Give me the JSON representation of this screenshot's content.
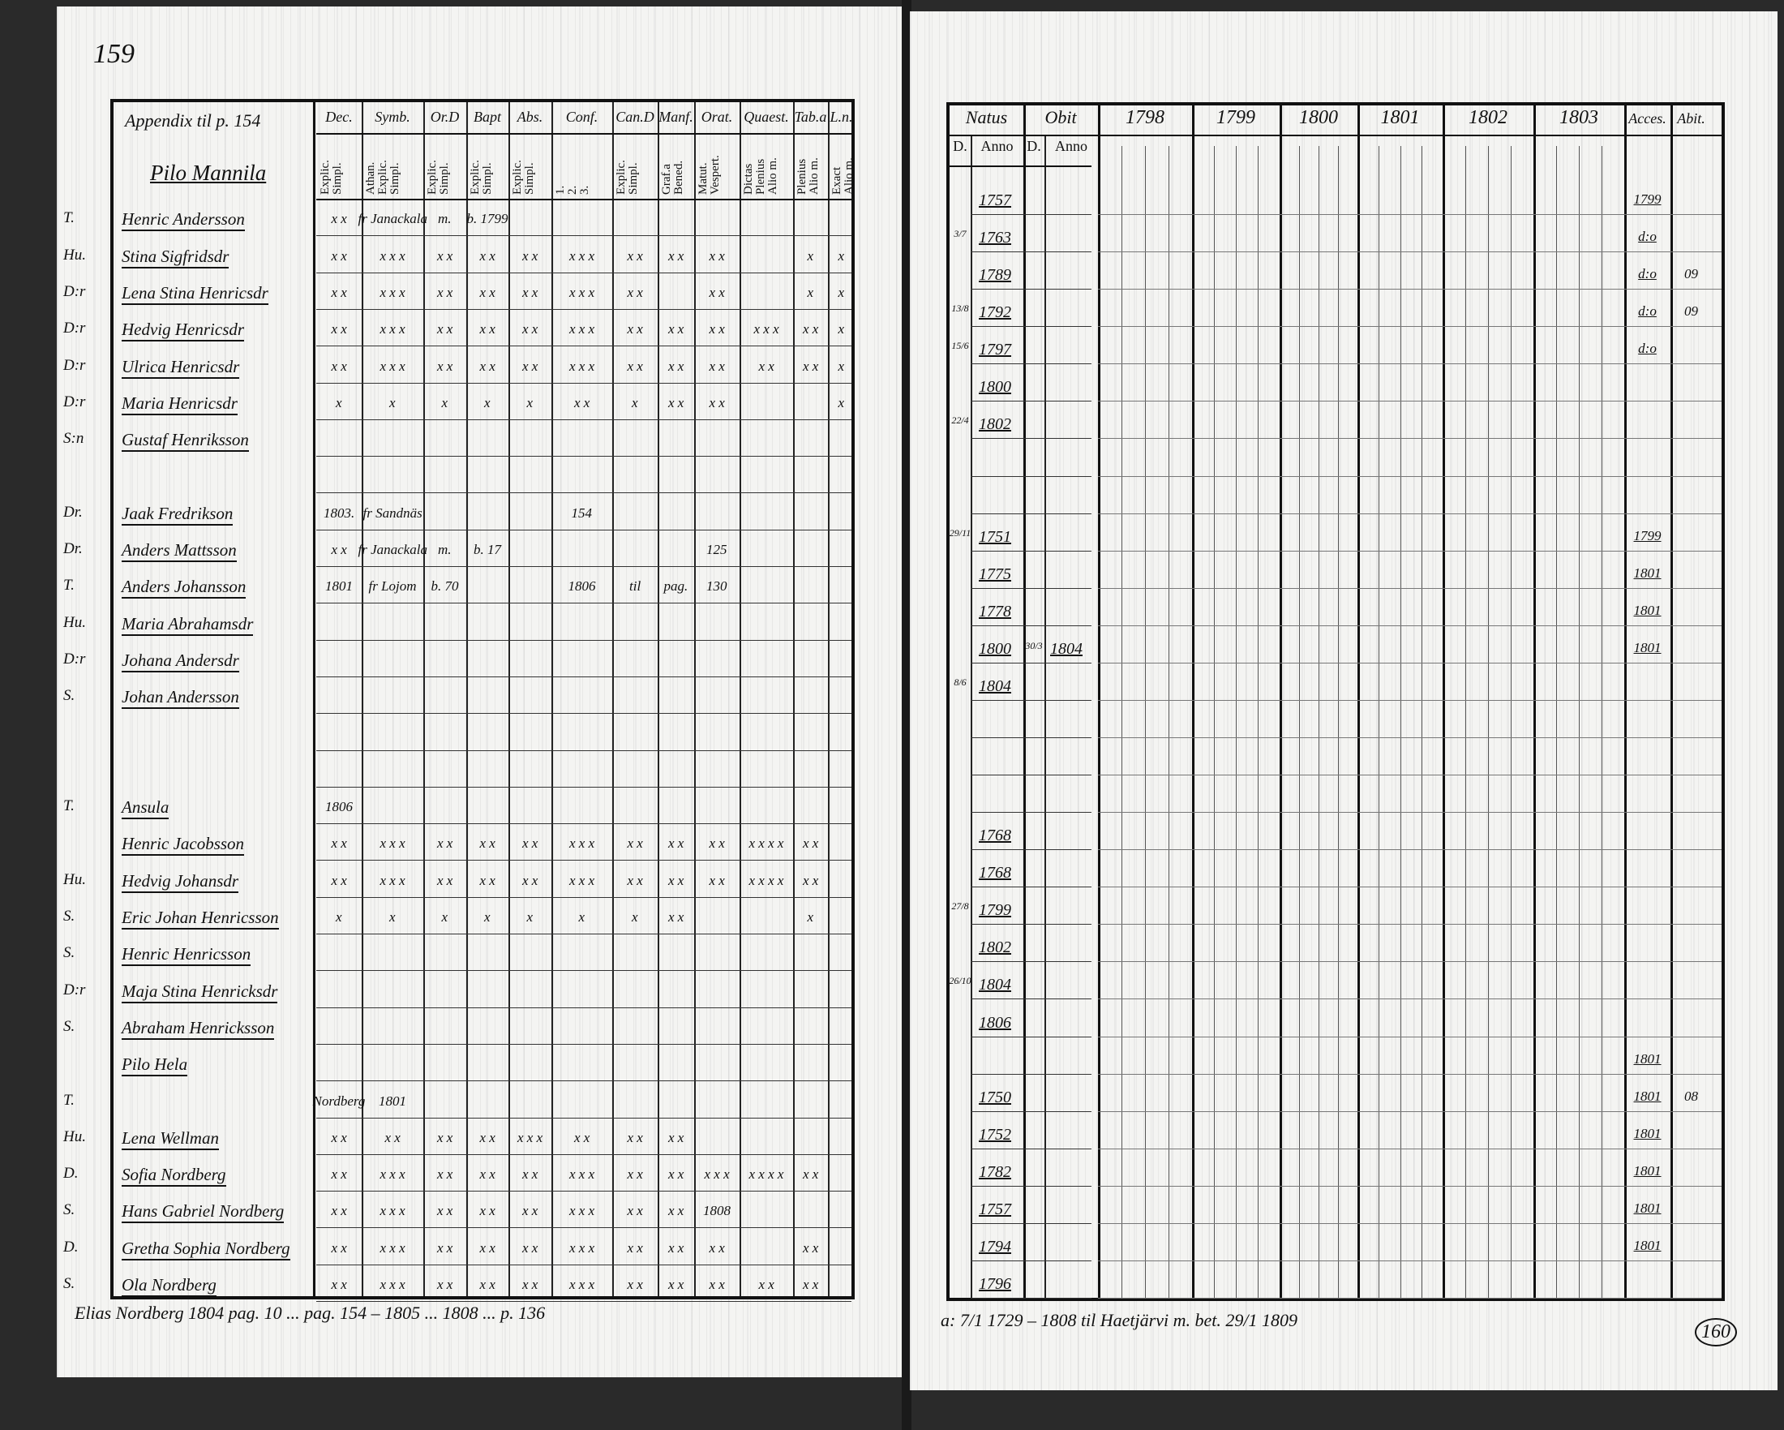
{
  "left_page": {
    "page_number": "159",
    "appendix_label": "Appendix til p. 154",
    "section_title": "Pilo Mannila",
    "columns": [
      {
        "label": "Dec.",
        "sub": "Explic.\nSimpl."
      },
      {
        "label": "Symb.",
        "sub": "Athan.\nExplic.\nSimpl."
      },
      {
        "label": "Or.D",
        "sub": "Explic.\nSimpl."
      },
      {
        "label": "Bapt",
        "sub": "Explic.\nSimpl."
      },
      {
        "label": "Abs.",
        "sub": "Explic.\nSimpl."
      },
      {
        "label": "Conf.",
        "sub": "1.\n2.\n3."
      },
      {
        "label": "Can.D",
        "sub": "Explic.\nSimpl."
      },
      {
        "label": "Manf.",
        "sub": "Graf.a\nBened."
      },
      {
        "label": "Orat.",
        "sub": "Matut.\nVespert."
      },
      {
        "label": "Quaest.",
        "sub": "Dictas\nPlenius\nAlio m."
      },
      {
        "label": "Tab.a",
        "sub": "Plenius\nAlio m."
      },
      {
        "label": "L.n.",
        "sub": "Exact\nAlio m."
      }
    ],
    "rows": [
      {
        "prefix": "T.",
        "name": "Henric Andersson",
        "marks": [
          "x x",
          "fr Janackala",
          "m.",
          "b. 1799",
          "",
          "",
          "",
          "",
          "",
          "",
          "",
          ""
        ]
      },
      {
        "prefix": "Hu.",
        "name": "Stina Sigfridsdr",
        "marks": [
          "x x",
          "x x x",
          "x x",
          "x x",
          "x x",
          "x x x",
          "x x",
          "x x",
          "x x",
          "",
          "x",
          "x"
        ]
      },
      {
        "prefix": "D:r",
        "name": "Lena Stina Henricsdr",
        "marks": [
          "x x",
          "x x x",
          "x x",
          "x x",
          "x x",
          "x x x",
          "x x",
          "",
          "x x",
          "",
          "x",
          "x"
        ]
      },
      {
        "prefix": "D:r",
        "name": "Hedvig Henricsdr",
        "marks": [
          "x x",
          "x x x",
          "x x",
          "x x",
          "x x",
          "x x x",
          "x x",
          "x x",
          "x x",
          "x x x",
          "x x",
          "x"
        ]
      },
      {
        "prefix": "D:r",
        "name": "Ulrica Henricsdr",
        "marks": [
          "x x",
          "x x x",
          "x x",
          "x x",
          "x x",
          "x x x",
          "x x",
          "x x",
          "x x",
          "x x",
          "x x",
          "x"
        ]
      },
      {
        "prefix": "D:r",
        "name": "Maria Henricsdr",
        "marks": [
          "x",
          "x",
          "x",
          "x",
          "x",
          "x x",
          "x",
          "x x",
          "x x",
          "",
          "",
          "x"
        ]
      },
      {
        "prefix": "S:n",
        "name": "Gustaf Henriksson",
        "marks": [
          "",
          "",
          "",
          "",
          "",
          "",
          "",
          "",
          "",
          "",
          "",
          ""
        ]
      },
      {
        "prefix": "",
        "name": "",
        "marks": [
          "",
          "",
          "",
          "",
          "",
          "",
          "",
          "",
          "",
          "",
          "",
          ""
        ]
      },
      {
        "prefix": "Dr.",
        "name": "Jaak Fredrikson",
        "marks": [
          "1803.",
          "fr Sandnäs",
          "",
          "",
          "",
          "154",
          "",
          "",
          "",
          "",
          "",
          ""
        ]
      },
      {
        "prefix": "Dr.",
        "name": "Anders Mattsson",
        "marks": [
          "x x",
          "fr Janackala",
          "m.",
          "b. 17",
          "",
          "",
          "",
          "",
          "125",
          "",
          "",
          ""
        ]
      },
      {
        "prefix": "T.",
        "name": "Anders Johansson",
        "marks": [
          "1801",
          "fr Lojom",
          "b. 70",
          "",
          "",
          "1806",
          "til",
          "pag.",
          "130",
          "",
          "",
          ""
        ]
      },
      {
        "prefix": "Hu.",
        "name": "Maria Abrahamsdr",
        "marks": [
          "",
          "",
          "",
          "",
          "",
          "",
          "",
          "",
          "",
          "",
          "",
          ""
        ]
      },
      {
        "prefix": "D:r",
        "name": "Johana Andersdr",
        "marks": [
          "",
          "",
          "",
          "",
          "",
          "",
          "",
          "",
          "",
          "",
          "",
          ""
        ]
      },
      {
        "prefix": "S.",
        "name": "Johan Andersson",
        "marks": [
          "",
          "",
          "",
          "",
          "",
          "",
          "",
          "",
          "",
          "",
          "",
          ""
        ]
      },
      {
        "prefix": "",
        "name": "",
        "marks": [
          "",
          "",
          "",
          "",
          "",
          "",
          "",
          "",
          "",
          "",
          "",
          ""
        ]
      },
      {
        "prefix": "",
        "name": "",
        "marks": [
          "",
          "",
          "",
          "",
          "",
          "",
          "",
          "",
          "",
          "",
          "",
          ""
        ]
      },
      {
        "prefix": "T.",
        "name": "Ansula",
        "marks": [
          "1806",
          "",
          "",
          "",
          "",
          "",
          "",
          "",
          "",
          "",
          "",
          ""
        ]
      },
      {
        "prefix": "",
        "name": "Henric Jacobsson",
        "marks": [
          "x x",
          "x x x",
          "x x",
          "x x",
          "x x",
          "x x x",
          "x x",
          "x x",
          "x x",
          "x x x x",
          "x x",
          ""
        ]
      },
      {
        "prefix": "Hu.",
        "name": "Hedvig Johansdr",
        "marks": [
          "x x",
          "x x x",
          "x x",
          "x x",
          "x x",
          "x x x",
          "x x",
          "x x",
          "x x",
          "x x x x",
          "x x",
          ""
        ]
      },
      {
        "prefix": "S.",
        "name": "Eric Johan Henricsson",
        "marks": [
          "x",
          "x",
          "x",
          "x",
          "x",
          "x",
          "x",
          "x x",
          "",
          "",
          "x",
          ""
        ]
      },
      {
        "prefix": "S.",
        "name": "Henric Henricsson",
        "marks": [
          "",
          "",
          "",
          "",
          "",
          "",
          "",
          "",
          "",
          "",
          "",
          ""
        ]
      },
      {
        "prefix": "D:r",
        "name": "Maja Stina Henricksdr",
        "marks": [
          "",
          "",
          "",
          "",
          "",
          "",
          "",
          "",
          "",
          "",
          "",
          ""
        ]
      },
      {
        "prefix": "S.",
        "name": "Abraham Henricksson",
        "marks": [
          "",
          "",
          "",
          "",
          "",
          "",
          "",
          "",
          "",
          "",
          "",
          ""
        ]
      },
      {
        "prefix": "",
        "name": "Pilo Hela",
        "marks": [
          "",
          "",
          "",
          "",
          "",
          "",
          "",
          "",
          "",
          "",
          "",
          ""
        ]
      },
      {
        "prefix": "T.",
        "name": "",
        "marks": [
          "Nordberg",
          "1801",
          "",
          "",
          "",
          "",
          "",
          "",
          "",
          "",
          "",
          ""
        ]
      },
      {
        "prefix": "Hu.",
        "name": "Lena Wellman",
        "marks": [
          "x x",
          "x x",
          "x x",
          "x x",
          "x x x",
          "x x",
          "x x",
          "x x",
          "",
          "",
          "",
          ""
        ]
      },
      {
        "prefix": "D.",
        "name": "Sofia Nordberg",
        "marks": [
          "x x",
          "x x x",
          "x x",
          "x x",
          "x x",
          "x x x",
          "x x",
          "x x",
          "x x x",
          "x x x x",
          "x x",
          ""
        ]
      },
      {
        "prefix": "S.",
        "name": "Hans Gabriel Nordberg",
        "marks": [
          "x x",
          "x x x",
          "x x",
          "x x",
          "x x",
          "x x x",
          "x x",
          "x x",
          "1808",
          "",
          "",
          ""
        ]
      },
      {
        "prefix": "D.",
        "name": "Gretha Sophia Nordberg",
        "marks": [
          "x x",
          "x x x",
          "x x",
          "x x",
          "x x",
          "x x x",
          "x x",
          "x x",
          "x x",
          "",
          "x x",
          ""
        ]
      },
      {
        "prefix": "S.",
        "name": "Ola Nordberg",
        "marks": [
          "x x",
          "x x x",
          "x x",
          "x x",
          "x x",
          "x x x",
          "x x",
          "x x",
          "x x",
          "x x",
          "x x",
          ""
        ]
      }
    ],
    "footer_note": "Elias Nordberg 1804 pag. 10 ... pag. 154 – 1805 ... 1808 ... p. 136"
  },
  "right_page": {
    "page_number": "160",
    "headers": {
      "natus": "Natus",
      "natus_d": "D.",
      "natus_anno": "Anno",
      "obit": "Obit",
      "obit_d": "D.",
      "obit_anno": "Anno",
      "years": [
        "1798",
        "1799",
        "1800",
        "1801",
        "1802",
        "1803"
      ],
      "acces": "Acces.",
      "abit": "Abit."
    },
    "rows": [
      {
        "d": "",
        "anno": "1757",
        "obit_d": "",
        "obit_anno": "",
        "acces": "1799",
        "abit": ""
      },
      {
        "d": "3/7",
        "anno": "1763",
        "obit_d": "",
        "obit_anno": "",
        "acces": "d:o",
        "abit": ""
      },
      {
        "d": "",
        "anno": "1789",
        "obit_d": "",
        "obit_anno": "",
        "acces": "d:o",
        "abit": "09"
      },
      {
        "d": "13/8",
        "anno": "1792",
        "obit_d": "",
        "obit_anno": "",
        "acces": "d:o",
        "abit": "09"
      },
      {
        "d": "15/6",
        "anno": "1797",
        "obit_d": "",
        "obit_anno": "",
        "acces": "d:o",
        "abit": ""
      },
      {
        "d": "",
        "anno": "1800",
        "obit_d": "",
        "obit_anno": "",
        "acces": "",
        "abit": ""
      },
      {
        "d": "22/4",
        "anno": "1802",
        "obit_d": "",
        "obit_anno": "",
        "acces": "",
        "abit": ""
      },
      {
        "d": "",
        "anno": "",
        "obit_d": "",
        "obit_anno": "",
        "acces": "",
        "abit": ""
      },
      {
        "d": "",
        "anno": "",
        "obit_d": "",
        "obit_anno": "",
        "acces": "",
        "abit": ""
      },
      {
        "d": "29/11",
        "anno": "1751",
        "obit_d": "",
        "obit_anno": "",
        "acces": "1799",
        "abit": ""
      },
      {
        "d": "",
        "anno": "1775",
        "obit_d": "",
        "obit_anno": "",
        "acces": "1801",
        "abit": ""
      },
      {
        "d": "",
        "anno": "1778",
        "obit_d": "",
        "obit_anno": "",
        "acces": "1801",
        "abit": ""
      },
      {
        "d": "",
        "anno": "1800",
        "obit_d": "30/3",
        "obit_anno": "1804",
        "acces": "1801",
        "abit": ""
      },
      {
        "d": "8/6",
        "anno": "1804",
        "obit_d": "",
        "obit_anno": "",
        "acces": "",
        "abit": ""
      },
      {
        "d": "",
        "anno": "",
        "obit_d": "",
        "obit_anno": "",
        "acces": "",
        "abit": ""
      },
      {
        "d": "",
        "anno": "",
        "obit_d": "",
        "obit_anno": "",
        "acces": "",
        "abit": ""
      },
      {
        "d": "",
        "anno": "",
        "obit_d": "",
        "obit_anno": "",
        "acces": "",
        "abit": ""
      },
      {
        "d": "",
        "anno": "1768",
        "obit_d": "",
        "obit_anno": "",
        "acces": "",
        "abit": ""
      },
      {
        "d": "",
        "anno": "1768",
        "obit_d": "",
        "obit_anno": "",
        "acces": "",
        "abit": ""
      },
      {
        "d": "27/8",
        "anno": "1799",
        "obit_d": "",
        "obit_anno": "",
        "acces": "",
        "abit": ""
      },
      {
        "d": "",
        "anno": "1802",
        "obit_d": "",
        "obit_anno": "",
        "acces": "",
        "abit": ""
      },
      {
        "d": "26/10",
        "anno": "1804",
        "obit_d": "",
        "obit_anno": "",
        "acces": "",
        "abit": ""
      },
      {
        "d": "",
        "anno": "1806",
        "obit_d": "",
        "obit_anno": "",
        "acces": "",
        "abit": ""
      },
      {
        "d": "",
        "anno": "",
        "obit_d": "",
        "obit_anno": "",
        "acces": "1801",
        "abit": ""
      },
      {
        "d": "",
        "anno": "1750",
        "obit_d": "",
        "obit_anno": "",
        "acces": "1801",
        "abit": "08"
      },
      {
        "d": "",
        "anno": "1752",
        "obit_d": "",
        "obit_anno": "",
        "acces": "1801",
        "abit": ""
      },
      {
        "d": "",
        "anno": "1782",
        "obit_d": "",
        "obit_anno": "",
        "acces": "1801",
        "abit": ""
      },
      {
        "d": "",
        "anno": "1757",
        "obit_d": "",
        "obit_anno": "",
        "acces": "1801",
        "abit": ""
      },
      {
        "d": "",
        "anno": "1794",
        "obit_d": "",
        "obit_anno": "",
        "acces": "1801",
        "abit": ""
      },
      {
        "d": "",
        "anno": "1796",
        "obit_d": "",
        "obit_anno": "",
        "acces": "",
        "abit": ""
      }
    ],
    "footer_note": "a: 7/1 1729 – 1808 til Haetjärvi m. bet. 29/1 1809"
  }
}
